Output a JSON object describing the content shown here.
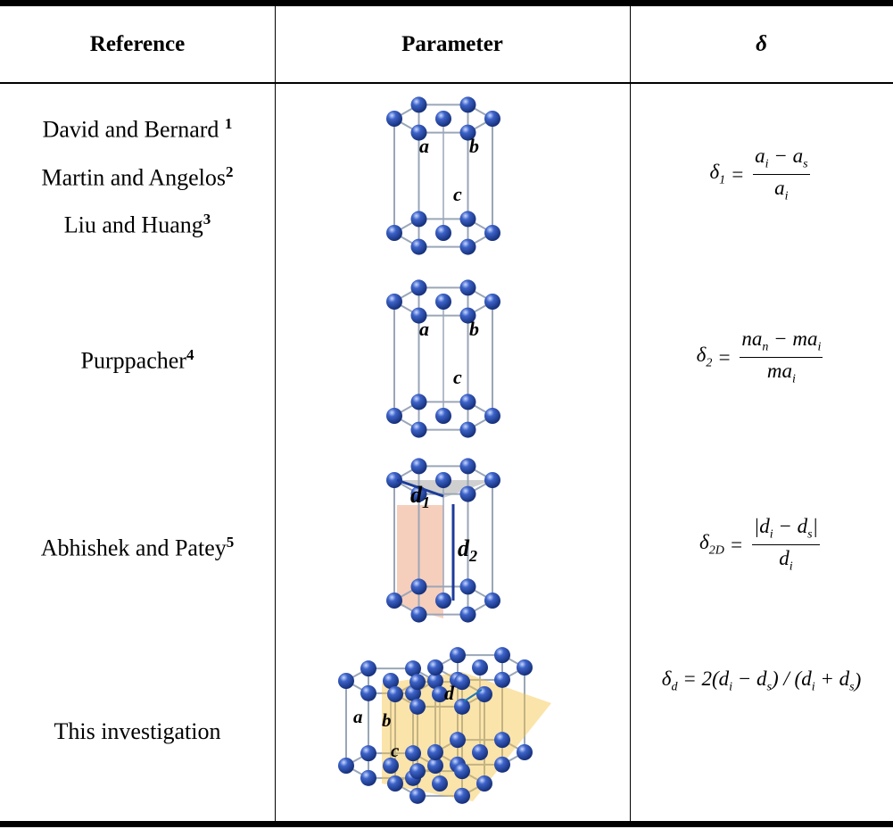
{
  "table": {
    "header": [
      "Reference",
      "Parameter",
      "δ"
    ],
    "rows": [
      {
        "reference": [
          [
            "David and Bernard ",
            "1"
          ],
          [
            "Martin and Angelos",
            "2"
          ],
          [
            "Liu and Huang",
            "3"
          ]
        ],
        "labels": [
          [
            "a"
          ],
          [
            "b"
          ],
          [
            "c"
          ]
        ],
        "formula": {
          "lhs": [
            "δ",
            "1"
          ],
          "eq": " = ",
          "num": [
            [
              "a",
              "i"
            ],
            [
              " − a",
              "s"
            ]
          ],
          "den": [
            [
              "a",
              "i"
            ]
          ]
        }
      },
      {
        "reference": [
          [
            "Purppacher",
            "4"
          ]
        ],
        "labels": [
          [
            "a"
          ],
          [
            "b"
          ],
          [
            "c"
          ]
        ],
        "formula": {
          "lhs": [
            "δ",
            "2"
          ],
          "eq": " = ",
          "num": [
            [
              "na",
              "n"
            ],
            [
              " − ma",
              "i"
            ]
          ],
          "den": [
            [
              "ma",
              "i"
            ]
          ]
        }
      },
      {
        "reference": [
          [
            "Abhishek and Patey",
            "5"
          ]
        ],
        "labels": [
          [
            "d",
            "1"
          ],
          [
            "d",
            "2"
          ]
        ],
        "formula": {
          "lhs": [
            "δ",
            "2D"
          ],
          "eq": " = ",
          "num": [
            [
              "|d",
              "i"
            ],
            [
              " − d",
              "s"
            ],
            [
              "|"
            ]
          ],
          "den": [
            [
              "d",
              "i"
            ]
          ]
        }
      },
      {
        "reference": [
          [
            "This investigation"
          ]
        ],
        "labels": [
          [
            "a"
          ],
          [
            "b"
          ],
          [
            "c"
          ],
          [
            "d"
          ]
        ],
        "formula": {
          "lhs": [
            "δ",
            "d"
          ],
          "inline": [
            [
              " = 2(d",
              "i"
            ],
            [
              " − d",
              "s"
            ],
            [
              ") / (d",
              "i"
            ],
            [
              " + d",
              "s"
            ],
            [
              ")"
            ]
          ]
        }
      }
    ]
  }
}
